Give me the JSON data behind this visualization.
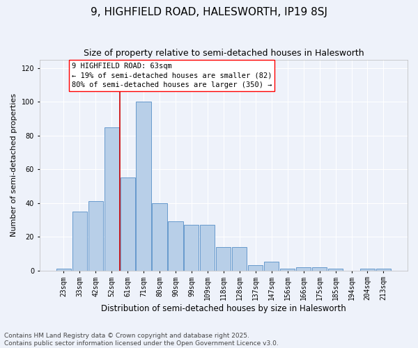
{
  "title": "9, HIGHFIELD ROAD, HALESWORTH, IP19 8SJ",
  "subtitle": "Size of property relative to semi-detached houses in Halesworth",
  "xlabel": "Distribution of semi-detached houses by size in Halesworth",
  "ylabel": "Number of semi-detached properties",
  "categories": [
    "23sqm",
    "33sqm",
    "42sqm",
    "52sqm",
    "61sqm",
    "71sqm",
    "80sqm",
    "90sqm",
    "99sqm",
    "109sqm",
    "118sqm",
    "128sqm",
    "137sqm",
    "147sqm",
    "156sqm",
    "166sqm",
    "175sqm",
    "185sqm",
    "194sqm",
    "204sqm",
    "213sqm"
  ],
  "values": [
    1,
    35,
    41,
    85,
    55,
    100,
    40,
    29,
    27,
    27,
    14,
    14,
    3,
    5,
    1,
    2,
    2,
    1,
    0,
    1,
    1
  ],
  "bar_color": "#b8cfe8",
  "bar_edge_color": "#6699cc",
  "vline_color": "#cc0000",
  "annotation_box_text": "9 HIGHFIELD ROAD: 63sqm\n← 19% of semi-detached houses are smaller (82)\n80% of semi-detached houses are larger (350) →",
  "ylim": [
    0,
    125
  ],
  "yticks": [
    0,
    20,
    40,
    60,
    80,
    100,
    120
  ],
  "footnote": "Contains HM Land Registry data © Crown copyright and database right 2025.\nContains public sector information licensed under the Open Government Licence v3.0.",
  "background_color": "#eef2fa",
  "grid_color": "#ffffff",
  "title_fontsize": 11,
  "subtitle_fontsize": 9,
  "xlabel_fontsize": 8.5,
  "ylabel_fontsize": 8,
  "tick_fontsize": 7,
  "annotation_fontsize": 7.5,
  "footnote_fontsize": 6.5
}
